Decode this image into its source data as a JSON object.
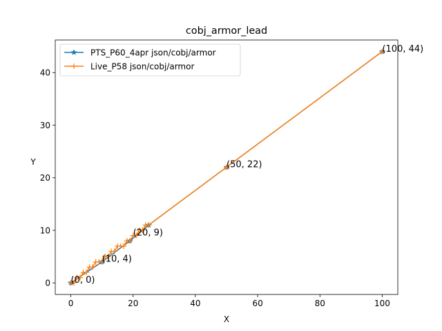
{
  "chart_data": {
    "type": "line",
    "title": "cobj_armor_lead",
    "xlabel": "X",
    "ylabel": "Y",
    "xlim": [
      -5,
      105
    ],
    "ylim": [
      -2.2,
      46.2
    ],
    "xticks": [
      0,
      20,
      40,
      60,
      80,
      100
    ],
    "yticks": [
      0,
      10,
      20,
      30,
      40
    ],
    "grid": false,
    "legend_position": "top-left",
    "series": [
      {
        "name": "PTS_P60_4apr json/cobj/armor",
        "color": "#1f77b4",
        "marker": "star",
        "x": [
          0,
          10,
          19,
          25,
          50,
          100
        ],
        "y": [
          0,
          4,
          8,
          11,
          22,
          44
        ]
      },
      {
        "name": "Live_P58 json/cobj/armor",
        "color": "#ff7f0e",
        "marker": "plus",
        "x": [
          0,
          1,
          2,
          3,
          4,
          5,
          6,
          7,
          8,
          9,
          10,
          11,
          12,
          13,
          14,
          15,
          16,
          17,
          18,
          19,
          20,
          21,
          22,
          23,
          24,
          25,
          50,
          100
        ],
        "y": [
          0,
          0,
          1,
          1,
          2,
          2,
          3,
          3,
          4,
          4,
          4,
          5,
          5,
          6,
          6,
          7,
          7,
          7,
          8,
          8,
          9,
          9,
          10,
          10,
          11,
          11,
          22,
          44
        ]
      }
    ],
    "annotations": [
      {
        "x": 0,
        "y": 0,
        "text": "(0, 0)"
      },
      {
        "x": 10,
        "y": 4,
        "text": "(10, 4)"
      },
      {
        "x": 20,
        "y": 9,
        "text": "(20, 9)"
      },
      {
        "x": 50,
        "y": 22,
        "text": "(50, 22)"
      },
      {
        "x": 100,
        "y": 44,
        "text": "(100, 44)"
      }
    ]
  }
}
